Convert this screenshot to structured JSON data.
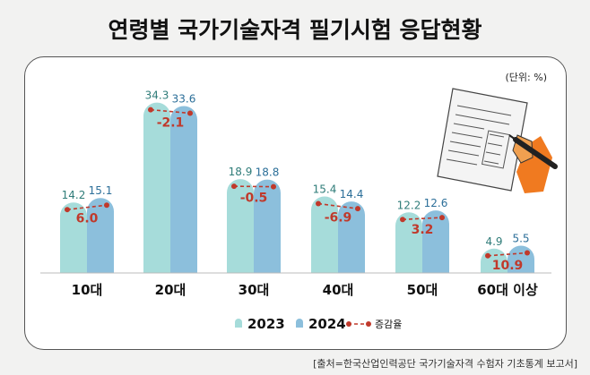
{
  "title": "연령별 국가기술자격 필기시험 응답현황",
  "unit_note": "(단위: %)",
  "source": "[출처=한국산업인력공단 국가기술자격 수험자 기초통계 보고서]",
  "icon": "checklist-hand-pen-icon",
  "colors": {
    "series_2023": "#a6dcda",
    "series_2024": "#8cbfdc",
    "change_line": "#c0392b",
    "label_2023": "#2f7c79",
    "label_2024": "#2c6f99"
  },
  "chart_data": {
    "type": "bar",
    "categories": [
      "10대",
      "20대",
      "30대",
      "40대",
      "50대",
      "60대 이상"
    ],
    "series": [
      {
        "name": "2023",
        "values": [
          14.2,
          34.3,
          18.9,
          15.4,
          12.2,
          4.9
        ]
      },
      {
        "name": "2024",
        "values": [
          15.1,
          33.6,
          18.8,
          14.4,
          12.6,
          5.5
        ]
      }
    ],
    "change": {
      "name": "증감율",
      "labels": [
        "6.0",
        "-2.1",
        "-0.5",
        "-6.9",
        "3.2",
        "10.9"
      ],
      "values": [
        6.0,
        -2.1,
        -0.5,
        -6.9,
        3.2,
        10.9
      ]
    },
    "legend": [
      "2023",
      "2024",
      "증감율"
    ],
    "legend_position": "bottom-center",
    "ylim": [
      0,
      36
    ],
    "grid": false
  }
}
